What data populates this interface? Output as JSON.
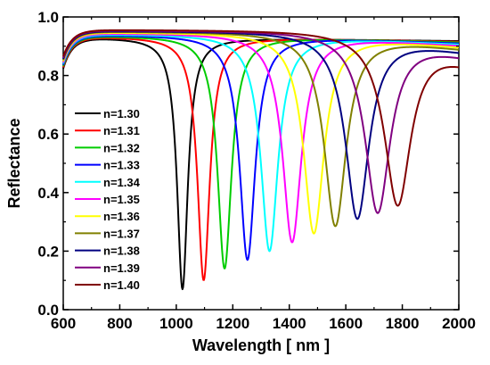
{
  "chart_data": {
    "type": "line",
    "xlabel": "Wavelength [ nm ]",
    "ylabel": "Reflectance",
    "xlim": [
      600,
      2000
    ],
    "ylim": [
      0.0,
      1.0
    ],
    "xticks": [
      600,
      800,
      1000,
      1200,
      1400,
      1600,
      1800,
      2000
    ],
    "xtick_labels": [
      "600",
      "800",
      "1000",
      "1200",
      "1400",
      "1600",
      "1800",
      "2000"
    ],
    "yticks": [
      0.0,
      0.2,
      0.4,
      0.6,
      0.8,
      1.0
    ],
    "ytick_labels": [
      "0.0",
      "0.2",
      "0.4",
      "0.6",
      "0.8",
      "1.0"
    ],
    "grid": false,
    "legend_position": "left",
    "series": [
      {
        "name": "n=1.30",
        "color": "#000000",
        "dip_wavelength": 1022,
        "dip_min": 0.07,
        "peak": 0.93,
        "end_value": 0.918
      },
      {
        "name": "n=1.31",
        "color": "#ff0000",
        "dip_wavelength": 1097,
        "dip_min": 0.1,
        "peak": 0.933,
        "end_value": 0.916
      },
      {
        "name": "n=1.32",
        "color": "#00cc00",
        "dip_wavelength": 1171,
        "dip_min": 0.14,
        "peak": 0.936,
        "end_value": 0.914
      },
      {
        "name": "n=1.33",
        "color": "#0000ff",
        "dip_wavelength": 1252,
        "dip_min": 0.17,
        "peak": 0.939,
        "end_value": 0.911
      },
      {
        "name": "n=1.34",
        "color": "#00ffff",
        "dip_wavelength": 1330,
        "dip_min": 0.2,
        "peak": 0.942,
        "end_value": 0.908
      },
      {
        "name": "n=1.35",
        "color": "#ff00ff",
        "dip_wavelength": 1410,
        "dip_min": 0.23,
        "peak": 0.945,
        "end_value": 0.904
      },
      {
        "name": "n=1.36",
        "color": "#ffff00",
        "dip_wavelength": 1487,
        "dip_min": 0.26,
        "peak": 0.948,
        "end_value": 0.9
      },
      {
        "name": "n=1.37",
        "color": "#808000",
        "dip_wavelength": 1563,
        "dip_min": 0.285,
        "peak": 0.951,
        "end_value": 0.895
      },
      {
        "name": "n=1.38",
        "color": "#000080",
        "dip_wavelength": 1641,
        "dip_min": 0.31,
        "peak": 0.953,
        "end_value": 0.888
      },
      {
        "name": "n=1.39",
        "color": "#800080",
        "dip_wavelength": 1713,
        "dip_min": 0.33,
        "peak": 0.955,
        "end_value": 0.878
      },
      {
        "name": "n=1.40",
        "color": "#800000",
        "dip_wavelength": 1784,
        "dip_min": 0.355,
        "peak": 0.957,
        "end_value": 0.862
      }
    ]
  }
}
